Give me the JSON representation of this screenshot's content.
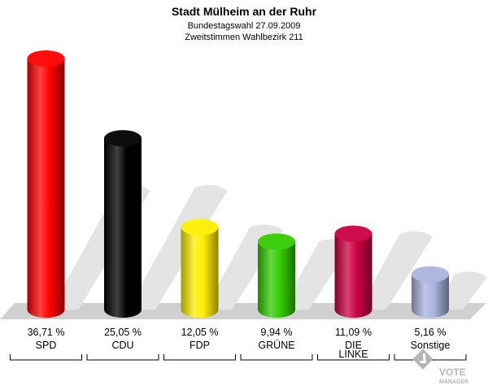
{
  "chart_data": {
    "type": "bar",
    "title": "Stadt Mülheim an der Ruhr",
    "subtitle_1": "Bundestagswahl 27.09.2009",
    "subtitle_2": "Zweitstimmen Wahlbezirk 211",
    "categories": [
      "SPD",
      "CDU",
      "FDP",
      "GRÜNE",
      "DIE LINKE",
      "Sonstige"
    ],
    "category_lines": [
      [
        "SPD"
      ],
      [
        "CDU"
      ],
      [
        "FDP"
      ],
      [
        "GRÜNE"
      ],
      [
        "DIE",
        "LINKE"
      ],
      [
        "Sonstige"
      ]
    ],
    "values": [
      36.71,
      25.05,
      12.05,
      9.94,
      11.09,
      5.16
    ],
    "value_labels": [
      "36,71 %",
      "25,05 %",
      "12,05 %",
      "9,94 %",
      "11,09 %",
      "5,16 %"
    ],
    "colors": [
      "#ff0000",
      "#000000",
      "#ffee00",
      "#33cc00",
      "#cc0044",
      "#aab4dd"
    ],
    "ylim": [
      0,
      40
    ],
    "grid": false,
    "legend": "none"
  },
  "logo": {
    "icon": "vote-manager-logo",
    "line1": "VOTE",
    "line2": "MANAGER"
  }
}
